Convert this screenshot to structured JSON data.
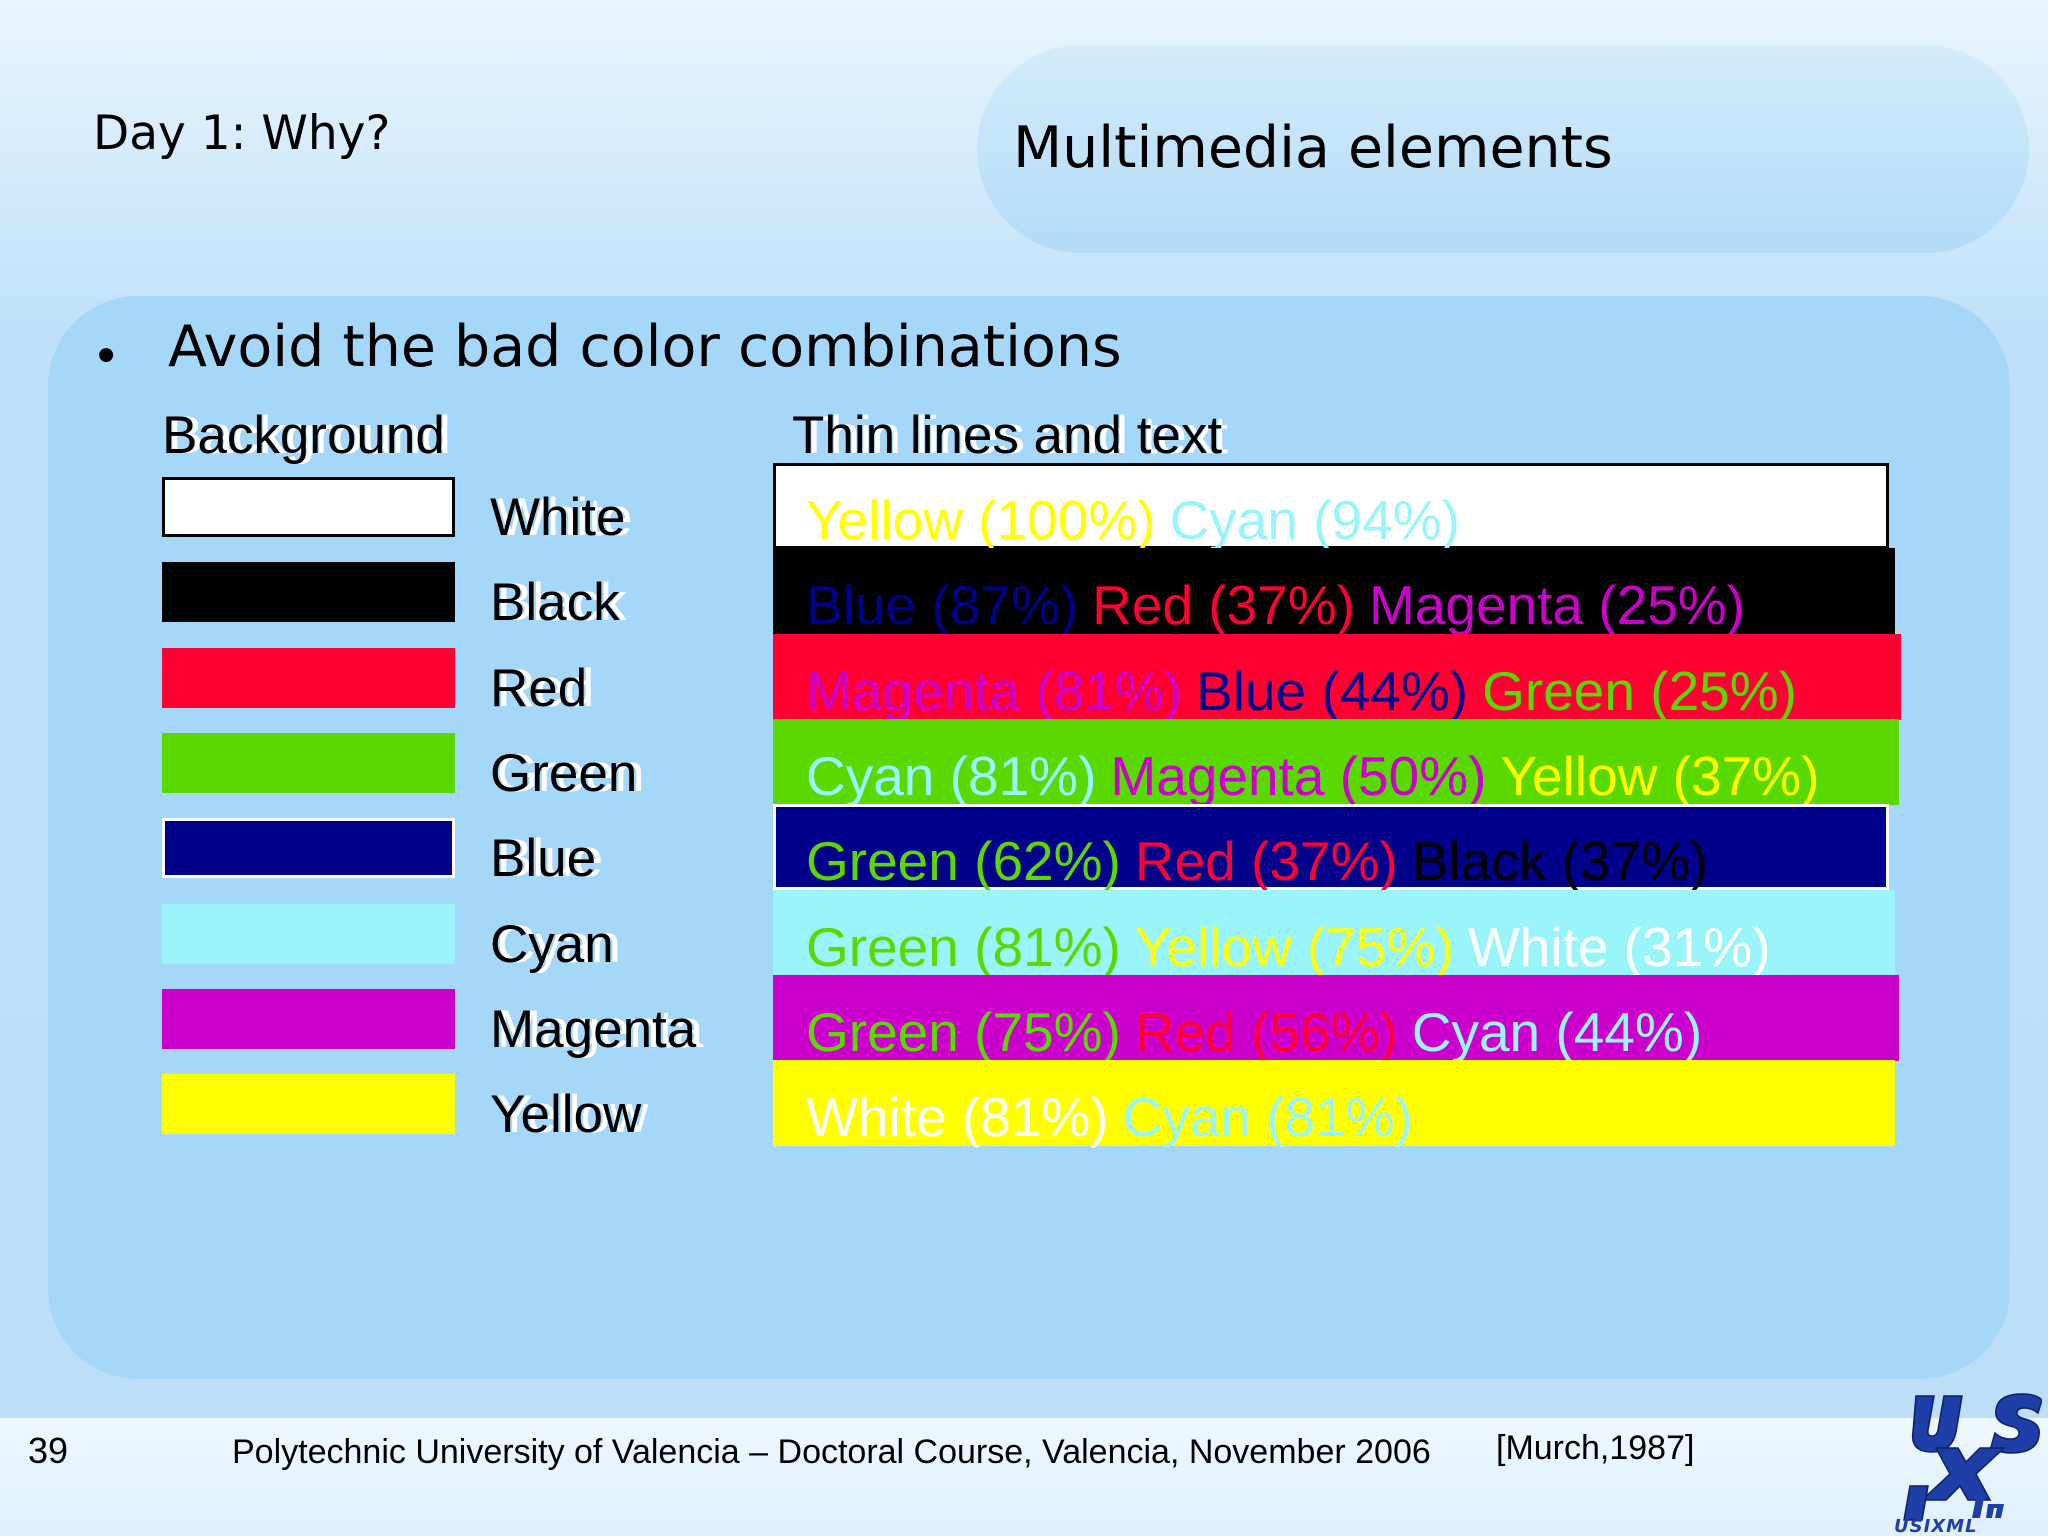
{
  "header": {
    "section": "Day 1: Why?",
    "title": "Multimedia elements"
  },
  "content": {
    "bullet": "Avoid the bad color combinations",
    "column_background": "Background",
    "column_thin": "Thin lines and text",
    "rows": [
      {
        "background": "White",
        "color": "#ffffff",
        "items": [
          {
            "text": "Yellow (100%)",
            "color": "#ffff00"
          },
          {
            "text": "Cyan (94%)",
            "color": "#99f5fa"
          }
        ]
      },
      {
        "background": "Black",
        "color": "#000000",
        "items": [
          {
            "text": "Blue (87%)",
            "color": "#00008b"
          },
          {
            "text": "Red (37%)",
            "color": "#ff0033"
          },
          {
            "text": "Magenta (25%)",
            "color": "#cc00cc"
          }
        ]
      },
      {
        "background": "Red",
        "color": "#ff0033",
        "items": [
          {
            "text": "Magenta (81%)",
            "color": "#cc00cc"
          },
          {
            "text": "Blue (44%)",
            "color": "#00008b"
          },
          {
            "text": "Green (25%)",
            "color": "#5ad900"
          }
        ]
      },
      {
        "background": "Green",
        "color": "#5ad900",
        "items": [
          {
            "text": "Cyan (81%)",
            "color": "#99f5fa"
          },
          {
            "text": "Magenta (50%)",
            "color": "#cc00cc"
          },
          {
            "text": "Yellow (37%)",
            "color": "#ffff00"
          }
        ]
      },
      {
        "background": "Blue",
        "color": "#00008b",
        "items": [
          {
            "text": "Green (62%)",
            "color": "#5ad900"
          },
          {
            "text": "Red (37%)",
            "color": "#ff0033"
          },
          {
            "text": "Black (37%)",
            "color": "#000000"
          }
        ]
      },
      {
        "background": "Cyan",
        "color": "#99f5fa",
        "items": [
          {
            "text": "Green (81%)",
            "color": "#5ad900"
          },
          {
            "text": "Yellow (75%)",
            "color": "#ffff00"
          },
          {
            "text": "White (31%)",
            "color": "#ffffff"
          }
        ]
      },
      {
        "background": "Magenta",
        "color": "#cc00cc",
        "items": [
          {
            "text": "Green (75%)",
            "color": "#5ad900"
          },
          {
            "text": "Red (56%)",
            "color": "#ff0033"
          },
          {
            "text": "Cyan (44%)",
            "color": "#99f5fa"
          }
        ]
      },
      {
        "background": "Yellow",
        "color": "#ffff00",
        "items": [
          {
            "text": "White (81%)",
            "color": "#ffffff"
          },
          {
            "text": "Cyan (81%)",
            "color": "#99f5fa"
          }
        ]
      }
    ]
  },
  "footer": {
    "page_number": "39",
    "text": "Polytechnic University of Valencia – Doctoral Course, Valencia, November 2006",
    "citation": "[Murch,1987]"
  },
  "logo": {
    "text": "USIXML",
    "color": "#1f3fa8"
  }
}
